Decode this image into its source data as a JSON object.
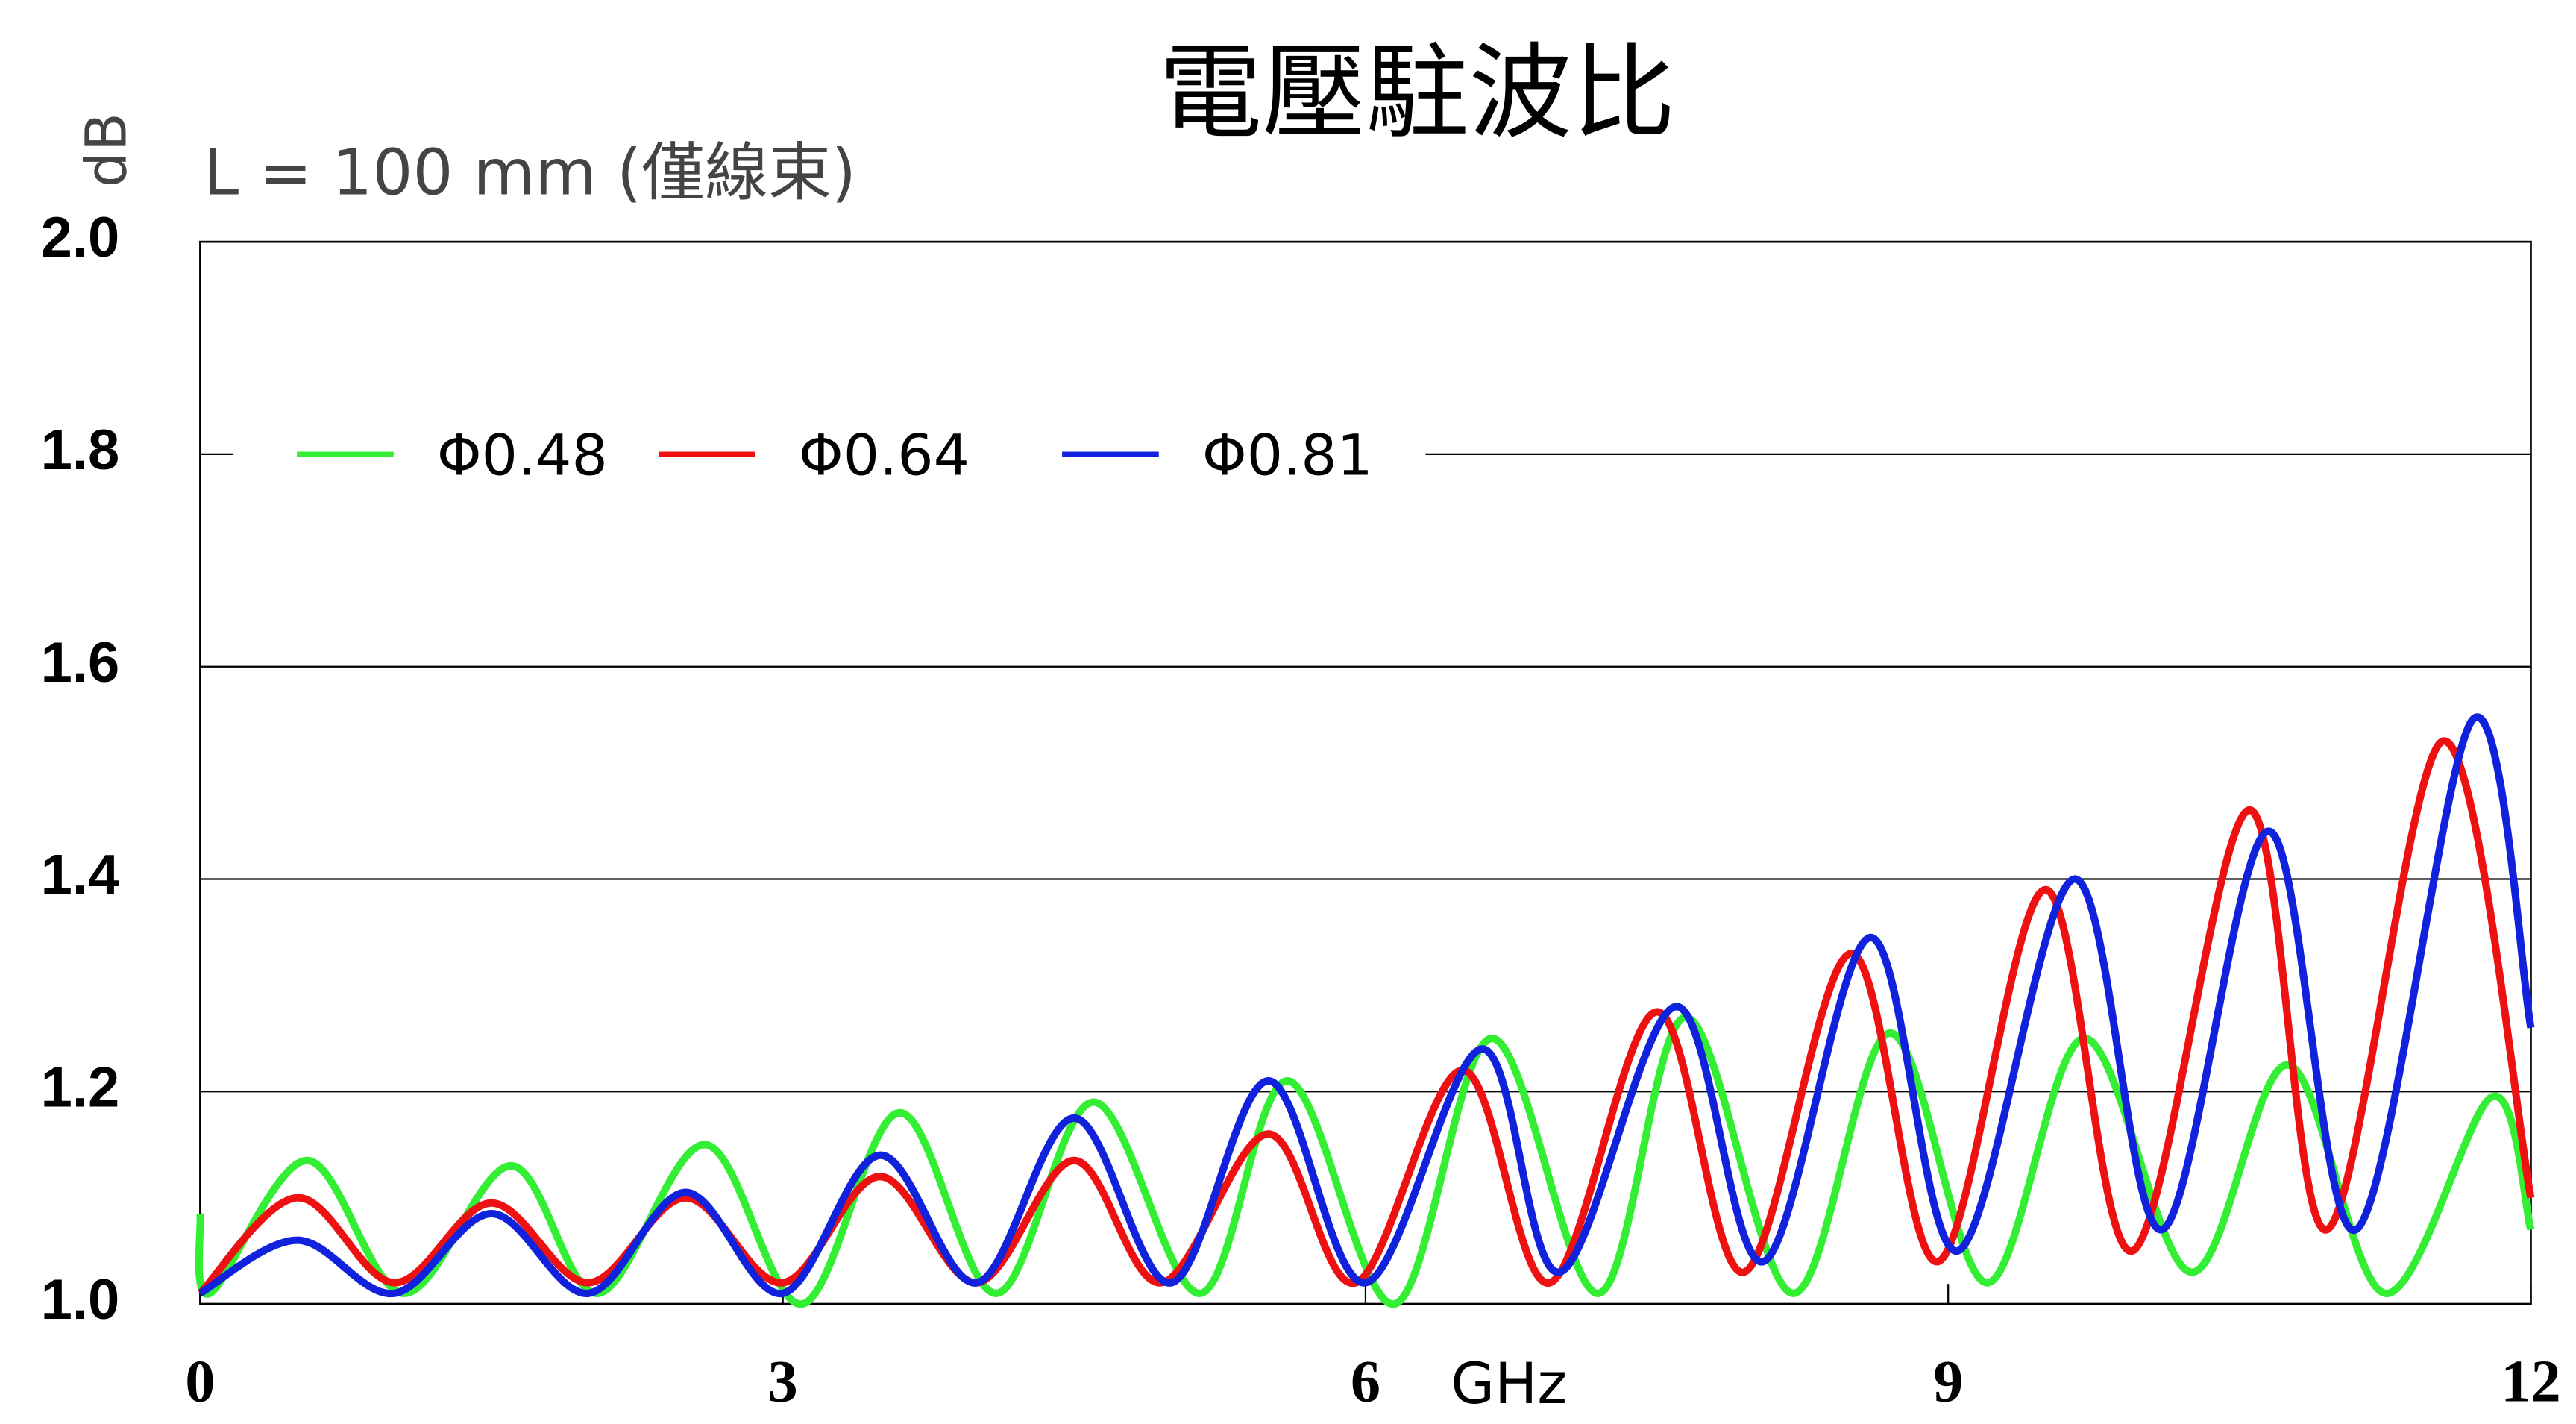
{
  "chart_data": {
    "type": "line",
    "title": "電壓駐波比",
    "subtitle": "L = 100 mm (僅線束)",
    "y_label": "dB",
    "x_label": "GHz",
    "xlim": [
      0,
      12
    ],
    "xticks": [
      0,
      3,
      6,
      9,
      12
    ],
    "ylim": [
      1.0,
      2.0
    ],
    "yticks": [
      {
        "value": 1.0,
        "label": "1.0"
      },
      {
        "value": 1.2,
        "label": "1.2"
      },
      {
        "value": 1.4,
        "label": "1.4"
      },
      {
        "value": 1.6,
        "label": "1.6"
      },
      {
        "value": 1.8,
        "label": "1.8"
      },
      {
        "value": 2.0,
        "label": "2.0"
      }
    ],
    "grid": true,
    "legend": "upper left",
    "series": [
      {
        "name": "Φ0.48",
        "color": "#33ee33",
        "x": [
          0,
          0.05,
          0.55,
          1.05,
          1.6,
          2.05,
          2.6,
          3.1,
          3.6,
          4.1,
          4.6,
          5.15,
          5.6,
          6.15,
          6.65,
          7.2,
          7.65,
          8.2,
          8.7,
          9.2,
          9.7,
          10.25,
          10.75,
          11.25,
          11.8,
          12
        ],
        "values": [
          1.085,
          1.01,
          1.135,
          1.01,
          1.13,
          1.01,
          1.15,
          1.0,
          1.18,
          1.01,
          1.19,
          1.01,
          1.21,
          1.0,
          1.25,
          1.01,
          1.27,
          1.01,
          1.255,
          1.02,
          1.25,
          1.03,
          1.225,
          1.01,
          1.195,
          1.07
        ]
      },
      {
        "name": "Φ0.64",
        "color": "#ee1111",
        "x": [
          0,
          0.5,
          1.0,
          1.5,
          2.0,
          2.5,
          3.0,
          3.5,
          4.0,
          4.5,
          4.95,
          5.5,
          5.95,
          6.5,
          6.95,
          7.5,
          7.95,
          8.5,
          8.95,
          9.5,
          9.95,
          10.55,
          10.95,
          11.55,
          12
        ],
        "values": [
          1.01,
          1.1,
          1.02,
          1.095,
          1.02,
          1.1,
          1.02,
          1.12,
          1.02,
          1.135,
          1.02,
          1.16,
          1.02,
          1.22,
          1.02,
          1.275,
          1.03,
          1.33,
          1.04,
          1.39,
          1.05,
          1.465,
          1.07,
          1.53,
          1.1
        ]
      },
      {
        "name": "Φ0.81",
        "color": "#1122dd",
        "x": [
          0,
          0.5,
          1.0,
          1.5,
          2.0,
          2.5,
          3.0,
          3.5,
          4.0,
          4.5,
          5.0,
          5.5,
          6.0,
          6.6,
          7.0,
          7.6,
          8.05,
          8.6,
          9.05,
          9.65,
          10.1,
          10.65,
          11.1,
          11.7,
          12
        ],
        "values": [
          1.01,
          1.06,
          1.01,
          1.085,
          1.01,
          1.105,
          1.01,
          1.14,
          1.02,
          1.175,
          1.02,
          1.21,
          1.02,
          1.24,
          1.03,
          1.28,
          1.04,
          1.345,
          1.05,
          1.4,
          1.07,
          1.445,
          1.07,
          1.55,
          1.26
        ]
      }
    ]
  }
}
